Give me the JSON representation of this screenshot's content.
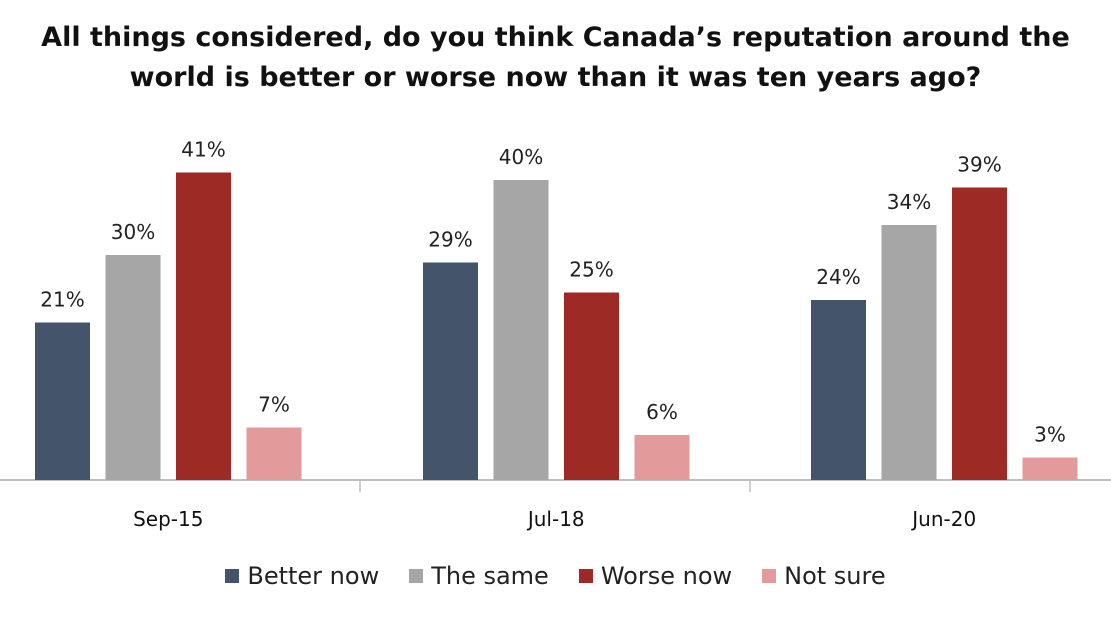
{
  "chart_data": {
    "type": "bar",
    "title": "All things considered, do you think Canada’s reputation around the world is better or worse now than it was ten years ago?",
    "title_lines": [
      "All things considered, do you think Canada’s reputation around the",
      "world is better or worse now than it was ten years ago?"
    ],
    "categories": [
      "Sep-15",
      "Jul-18",
      "Jun-20"
    ],
    "series": [
      {
        "name": "Better now",
        "color": "#44546a",
        "values": [
          21,
          29,
          24
        ],
        "labels": [
          "21%",
          "29%",
          "24%"
        ]
      },
      {
        "name": "The same",
        "color": "#a6a6a6",
        "values": [
          30,
          40,
          34
        ],
        "labels": [
          "30%",
          "40%",
          "34%"
        ]
      },
      {
        "name": "Worse now",
        "color": "#9e2a26",
        "values": [
          41,
          25,
          39
        ],
        "labels": [
          "41%",
          "25%",
          "39%"
        ]
      },
      {
        "name": "Not sure",
        "color": "#e39a9a",
        "values": [
          7,
          6,
          3
        ],
        "labels": [
          "7%",
          "6%",
          "3%"
        ]
      }
    ],
    "ylim": [
      0,
      45
    ],
    "grid": false,
    "legend_position": "bottom"
  }
}
